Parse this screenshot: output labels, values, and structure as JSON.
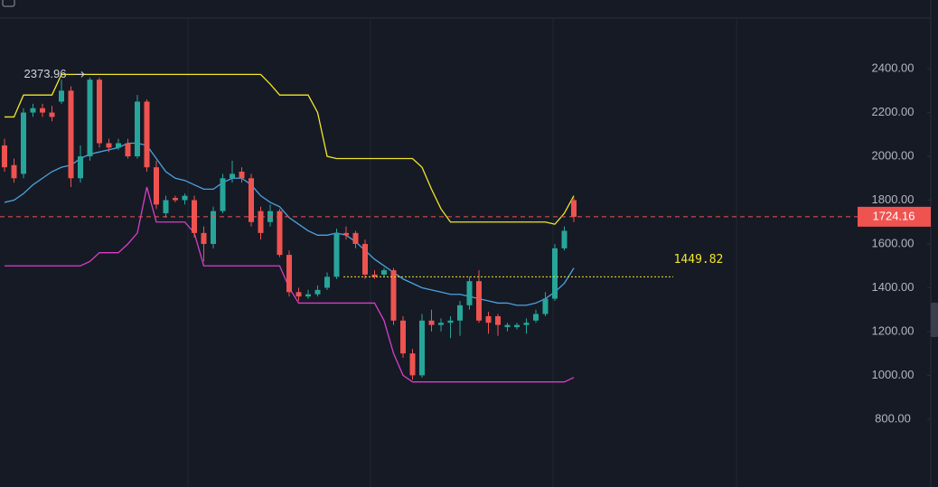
{
  "chart_data": {
    "type": "candlestick",
    "open": [
      2050,
      1960,
      1920,
      2200,
      2220,
      2200,
      2250,
      2300,
      1900,
      2000,
      2350,
      2060,
      2040,
      2060,
      2000,
      2250,
      1950,
      1740,
      1810,
      1800,
      1800,
      1650,
      1600,
      1750,
      1900,
      1930,
      1900,
      1750,
      1700,
      1750,
      1550,
      1380,
      1360,
      1370,
      1400,
      1450,
      1650,
      1650,
      1600,
      1460,
      1460,
      1480,
      1250,
      1100,
      1000,
      1250,
      1230,
      1240,
      1250,
      1320,
      1430,
      1270,
      1270,
      1220,
      1220,
      1230,
      1250,
      1280,
      1350,
      1580,
      1800
    ],
    "high": [
      2080,
      1990,
      2220,
      2240,
      2240,
      2230,
      2350,
      2320,
      2050,
      2360,
      2360,
      2080,
      2080,
      2080,
      2280,
      2260,
      1980,
      1820,
      1820,
      1830,
      1820,
      1680,
      1770,
      1920,
      1980,
      1950,
      1920,
      1770,
      1780,
      1760,
      1570,
      1400,
      1390,
      1410,
      1470,
      1670,
      1680,
      1660,
      1620,
      1480,
      1490,
      1490,
      1270,
      1120,
      1280,
      1300,
      1260,
      1270,
      1340,
      1450,
      1480,
      1290,
      1280,
      1240,
      1240,
      1260,
      1300,
      1380,
      1600,
      1680,
      1810
    ],
    "low": [
      1930,
      1880,
      1900,
      2180,
      2180,
      2160,
      2240,
      1860,
      1880,
      1980,
      2040,
      2020,
      2030,
      1990,
      1990,
      1930,
      1760,
      1720,
      1790,
      1780,
      1630,
      1520,
      1580,
      1740,
      1880,
      1880,
      1680,
      1620,
      1680,
      1540,
      1360,
      1340,
      1350,
      1360,
      1390,
      1440,
      1620,
      1580,
      1440,
      1440,
      1450,
      1230,
      1080,
      980,
      990,
      1200,
      1200,
      1170,
      1180,
      1300,
      1240,
      1190,
      1180,
      1200,
      1210,
      1190,
      1240,
      1270,
      1340,
      1570,
      1700
    ],
    "close": [
      1950,
      1900,
      2200,
      2220,
      2200,
      2180,
      2300,
      1900,
      2000,
      2350,
      2060,
      2040,
      2060,
      2000,
      2250,
      1950,
      1780,
      1800,
      1800,
      1820,
      1650,
      1600,
      1750,
      1900,
      1920,
      1900,
      1700,
      1650,
      1750,
      1550,
      1380,
      1360,
      1370,
      1390,
      1450,
      1650,
      1640,
      1600,
      1460,
      1450,
      1480,
      1250,
      1100,
      1000,
      1250,
      1230,
      1240,
      1250,
      1320,
      1430,
      1250,
      1240,
      1230,
      1230,
      1230,
      1240,
      1280,
      1350,
      1580,
      1660,
      1724
    ],
    "up_color": "#26a69a",
    "down_color": "#ef5350",
    "lines": [
      {
        "color": "#f0e62a",
        "values": [
          2180,
          2180,
          2280,
          2280,
          2280,
          2280,
          2374,
          2374,
          2374,
          2374,
          2374,
          2374,
          2374,
          2374,
          2374,
          2374,
          2374,
          2374,
          2374,
          2374,
          2374,
          2374,
          2374,
          2374,
          2374,
          2374,
          2374,
          2374,
          2330,
          2280,
          2280,
          2280,
          2280,
          2200,
          2000,
          1990,
          1990,
          1990,
          1990,
          1990,
          1990,
          1990,
          1990,
          1990,
          1950,
          1850,
          1760,
          1700,
          1700,
          1700,
          1700,
          1700,
          1700,
          1700,
          1700,
          1700,
          1700,
          1700,
          1690,
          1740,
          1820
        ]
      },
      {
        "color": "#d63fc8",
        "values": [
          1500,
          1500,
          1500,
          1500,
          1500,
          1500,
          1500,
          1500,
          1500,
          1520,
          1560,
          1560,
          1560,
          1600,
          1650,
          1860,
          1700,
          1700,
          1700,
          1700,
          1650,
          1500,
          1500,
          1500,
          1500,
          1500,
          1500,
          1500,
          1500,
          1500,
          1400,
          1330,
          1330,
          1330,
          1330,
          1330,
          1330,
          1330,
          1330,
          1330,
          1250,
          1100,
          1000,
          970,
          970,
          970,
          970,
          970,
          970,
          970,
          970,
          970,
          970,
          970,
          970,
          970,
          970,
          970,
          970,
          970,
          990
        ]
      },
      {
        "color": "#4aa3e0",
        "values": [
          1790,
          1800,
          1830,
          1870,
          1900,
          1930,
          1950,
          1960,
          1990,
          2010,
          2020,
          2030,
          2040,
          2060,
          2060,
          2050,
          1990,
          1930,
          1900,
          1890,
          1870,
          1850,
          1850,
          1880,
          1900,
          1900,
          1870,
          1820,
          1790,
          1770,
          1720,
          1690,
          1660,
          1640,
          1640,
          1650,
          1640,
          1610,
          1570,
          1530,
          1500,
          1470,
          1440,
          1420,
          1400,
          1390,
          1380,
          1370,
          1370,
          1360,
          1350,
          1340,
          1330,
          1330,
          1320,
          1320,
          1330,
          1350,
          1380,
          1420,
          1490
        ]
      }
    ],
    "high_marker": 2373.96,
    "level_line": 1449.82,
    "level_color": "#f0e62a",
    "last_price": 1724.16,
    "ylim": [
      490,
      2714
    ],
    "yticks": [
      {
        "value": 800,
        "label": "800.00"
      },
      {
        "value": 1000,
        "label": "1000.00"
      },
      {
        "value": 1200,
        "label": "1200.00"
      },
      {
        "value": 1400,
        "label": "1400.00"
      },
      {
        "value": 1600,
        "label": "1600.00"
      },
      {
        "value": 1800,
        "label": "1800.00"
      },
      {
        "value": 2000,
        "label": "2000.00"
      },
      {
        "value": 2200,
        "label": "2200.00"
      },
      {
        "value": 2400,
        "label": "2400.00"
      }
    ]
  }
}
